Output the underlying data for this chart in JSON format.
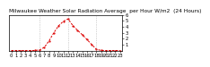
{
  "title": "Milwaukee Weather Solar Radiation Average  per Hour W/m2  (24 Hours)",
  "hours": [
    0,
    1,
    2,
    3,
    4,
    5,
    6,
    7,
    8,
    9,
    10,
    11,
    12,
    13,
    14,
    15,
    16,
    17,
    18,
    19,
    20,
    21,
    22,
    23
  ],
  "values": [
    0,
    0,
    0,
    0,
    0,
    1,
    10,
    55,
    165,
    300,
    415,
    490,
    530,
    420,
    340,
    265,
    185,
    100,
    20,
    2,
    0,
    0,
    0,
    0
  ],
  "line_color": "#dd0000",
  "bg_color": "#ffffff",
  "grid_color": "#888888",
  "ylim": [
    0,
    600
  ],
  "yticks": [
    100,
    200,
    300,
    400,
    500,
    600
  ],
  "ytick_labels": [
    "1",
    "2",
    "3",
    "4",
    "5",
    "6"
  ],
  "title_fontsize": 4.2,
  "tick_fontsize": 3.8,
  "grid_hours": [
    6,
    12,
    18
  ]
}
